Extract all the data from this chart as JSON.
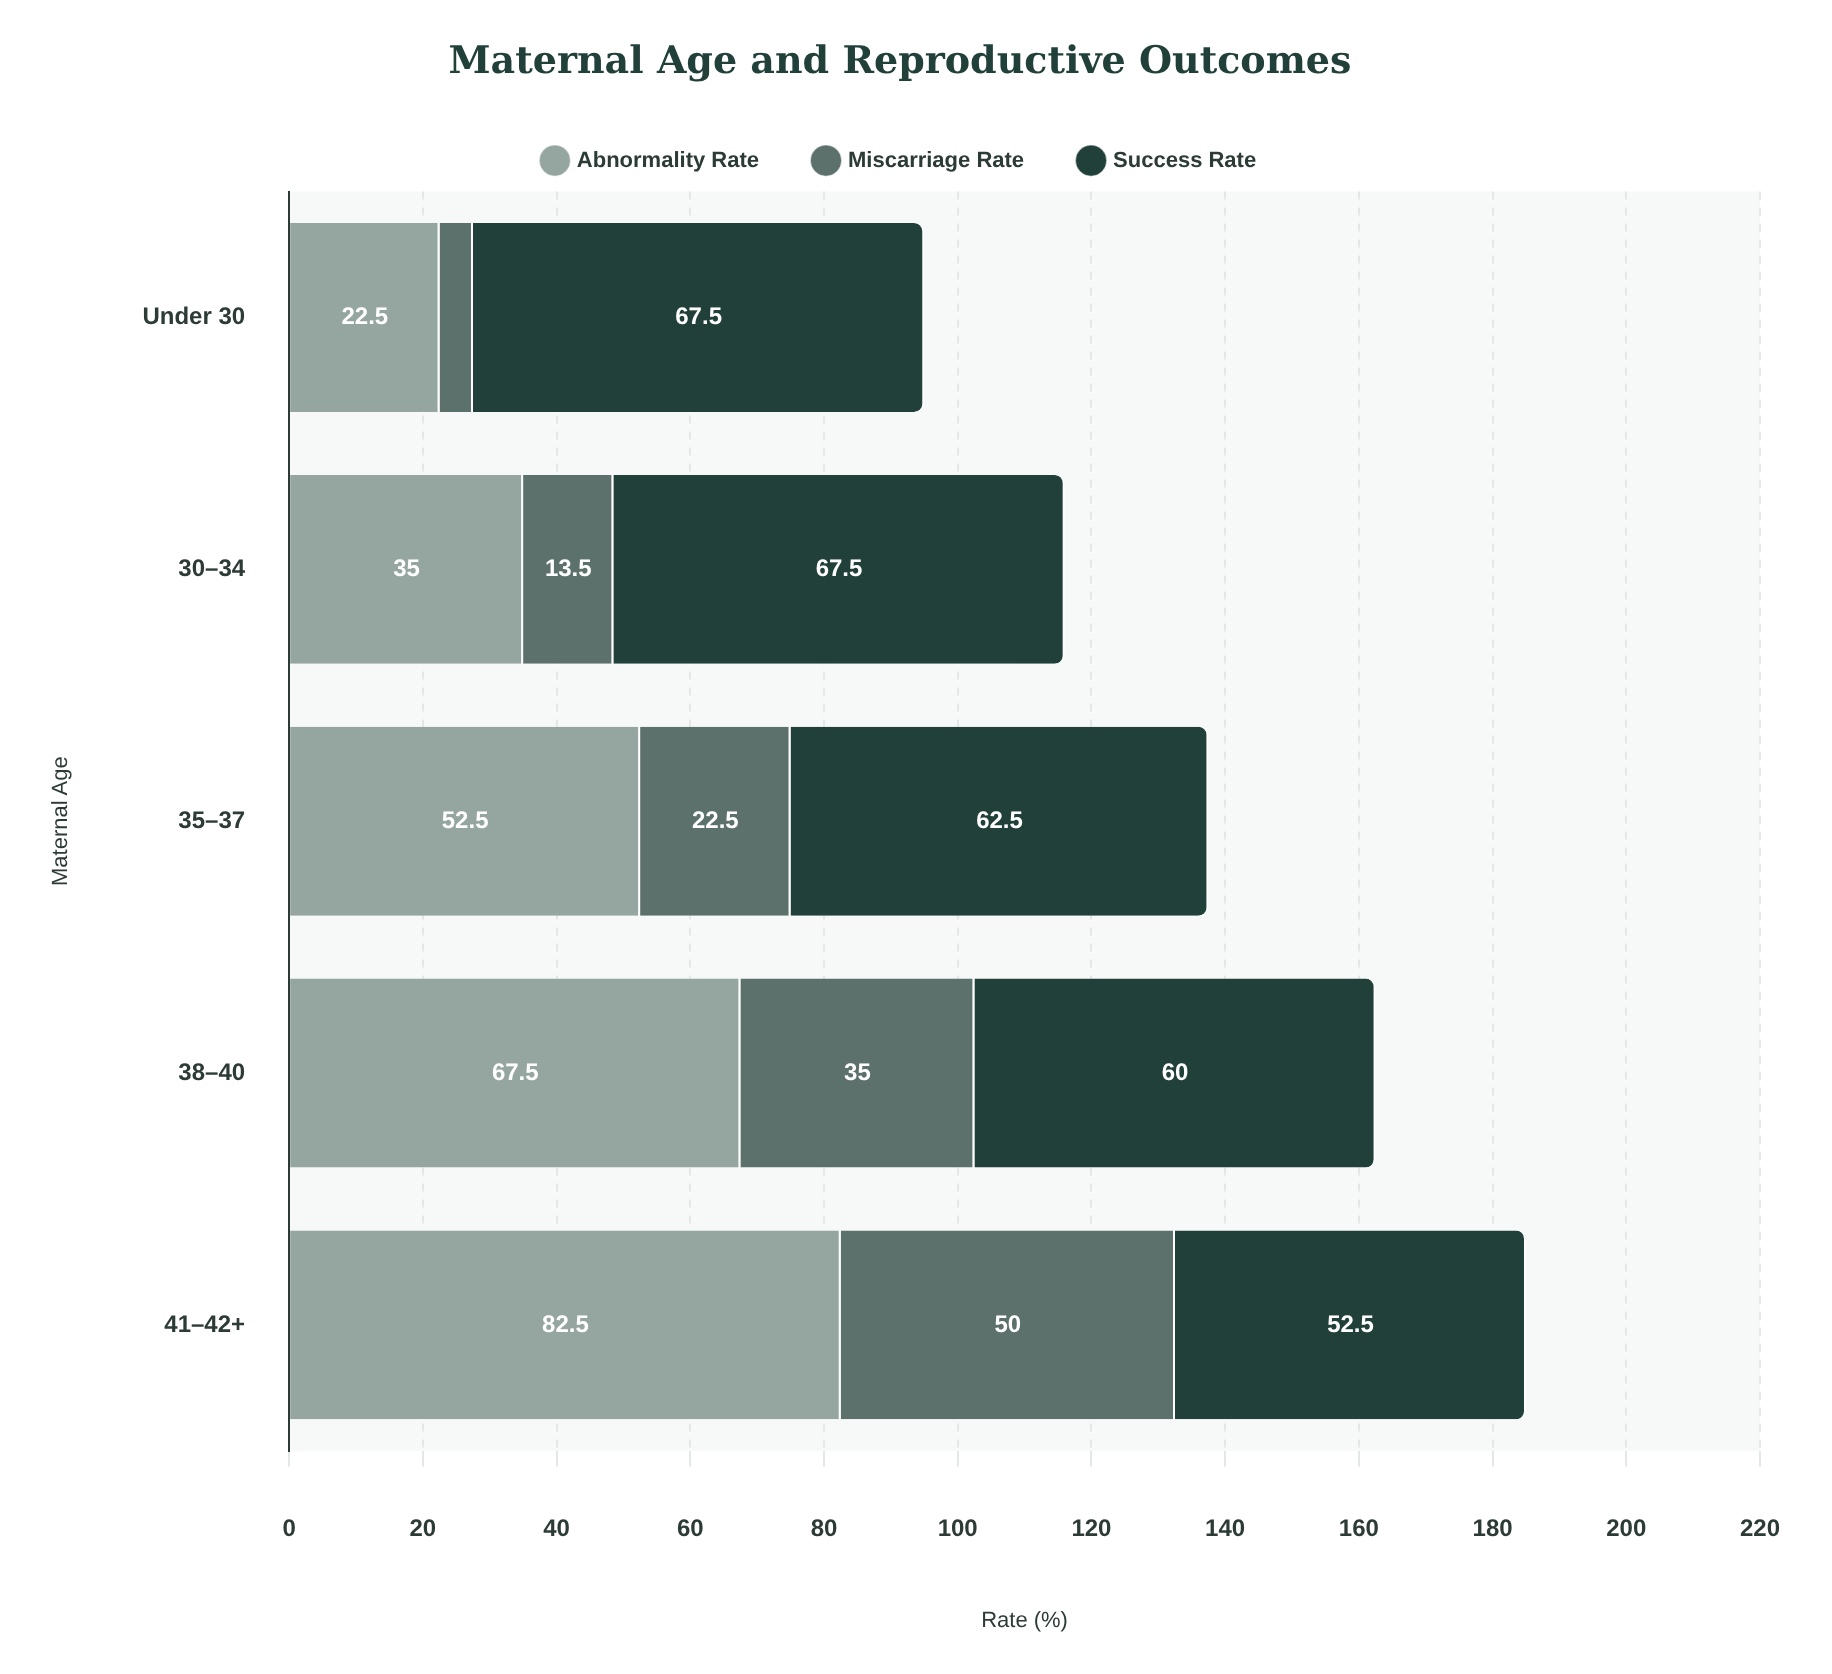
{
  "chart_data": {
    "type": "bar",
    "orientation": "horizontal",
    "stacked": true,
    "title": "Maternal Age and Reproductive Outcomes",
    "xlabel": "Rate (%)",
    "ylabel": "Maternal Age",
    "categories": [
      "Under 30",
      "30–34",
      "35–37",
      "38–40",
      "41–42+"
    ],
    "series": [
      {
        "name": "Abnormality Rate",
        "color": "#95a59f",
        "values": [
          22.5,
          35,
          52.5,
          67.5,
          82.5
        ],
        "value_labels": [
          "22.5",
          "35",
          "52.5",
          "67.5",
          "82.5"
        ]
      },
      {
        "name": "Miscarriage Rate",
        "color": "#5c716b",
        "values": [
          5,
          13.5,
          22.5,
          35,
          50
        ],
        "value_labels": [
          null,
          "13.5",
          "22.5",
          "35",
          "50"
        ]
      },
      {
        "name": "Success Rate",
        "color": "#22403a",
        "values": [
          67.5,
          67.5,
          62.5,
          60,
          52.5
        ],
        "value_labels": [
          "67.5",
          "67.5",
          "62.5",
          "60",
          "52.5"
        ]
      }
    ],
    "xlim": [
      0,
      220
    ],
    "xticks": [
      0,
      20,
      40,
      60,
      80,
      100,
      120,
      140,
      160,
      180,
      200,
      220
    ],
    "grid": "x",
    "legend": "top"
  }
}
